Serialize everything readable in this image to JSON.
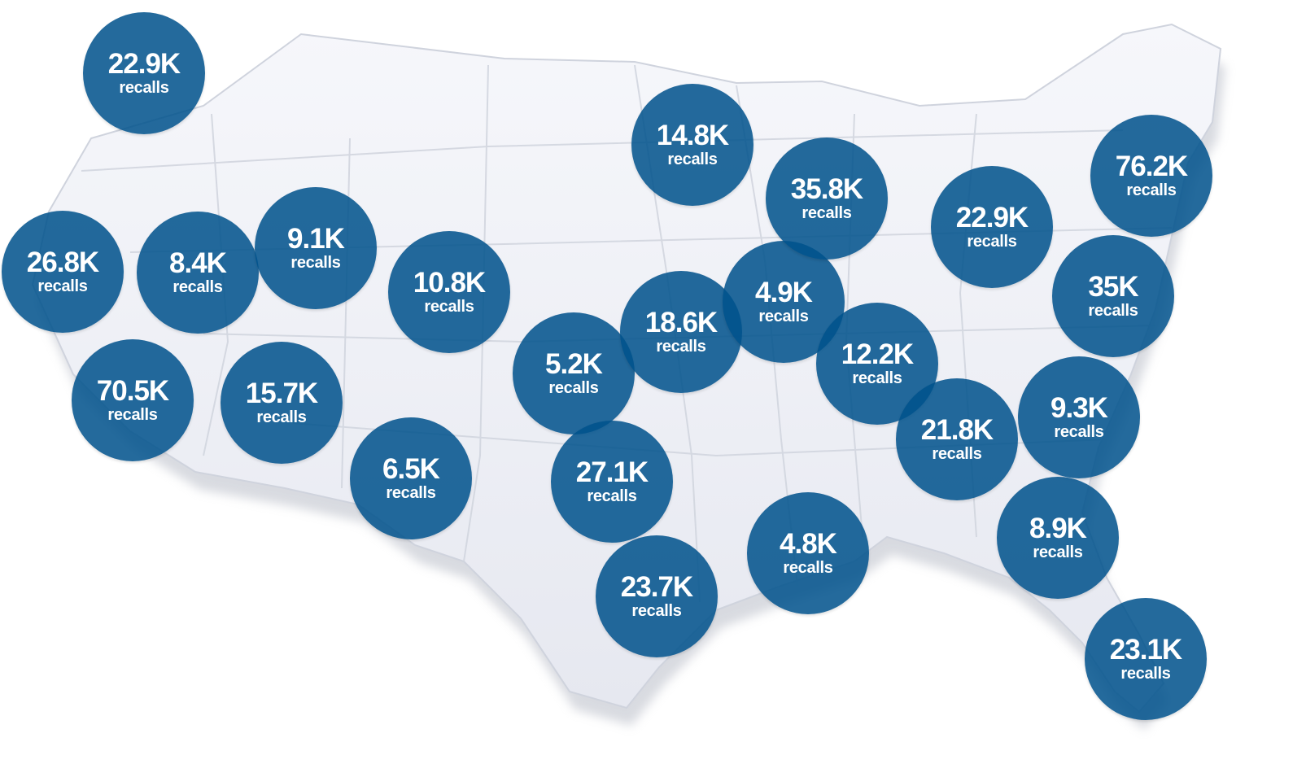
{
  "colors": {
    "bubble": "#00528c",
    "map_fill": "#eef0f6",
    "map_edge": "#cfd3dd",
    "text": "#ffffff"
  },
  "unit_label": "recalls",
  "bubbles": [
    {
      "value": "22.9K",
      "unit": "recalls"
    },
    {
      "value": "26.8K",
      "unit": "recalls"
    },
    {
      "value": "8.4K",
      "unit": "recalls"
    },
    {
      "value": "9.1K",
      "unit": "recalls"
    },
    {
      "value": "10.8K",
      "unit": "recalls"
    },
    {
      "value": "70.5K",
      "unit": "recalls"
    },
    {
      "value": "15.7K",
      "unit": "recalls"
    },
    {
      "value": "6.5K",
      "unit": "recalls"
    },
    {
      "value": "14.8K",
      "unit": "recalls"
    },
    {
      "value": "5.2K",
      "unit": "recalls"
    },
    {
      "value": "18.6K",
      "unit": "recalls"
    },
    {
      "value": "4.9K",
      "unit": "recalls"
    },
    {
      "value": "35.8K",
      "unit": "recalls"
    },
    {
      "value": "27.1K",
      "unit": "recalls"
    },
    {
      "value": "23.7K",
      "unit": "recalls"
    },
    {
      "value": "4.8K",
      "unit": "recalls"
    },
    {
      "value": "12.2K",
      "unit": "recalls"
    },
    {
      "value": "22.9K",
      "unit": "recalls"
    },
    {
      "value": "21.8K",
      "unit": "recalls"
    },
    {
      "value": "76.2K",
      "unit": "recalls"
    },
    {
      "value": "35K",
      "unit": "recalls"
    },
    {
      "value": "9.3K",
      "unit": "recalls"
    },
    {
      "value": "8.9K",
      "unit": "recalls"
    },
    {
      "value": "23.1K",
      "unit": "recalls"
    }
  ]
}
